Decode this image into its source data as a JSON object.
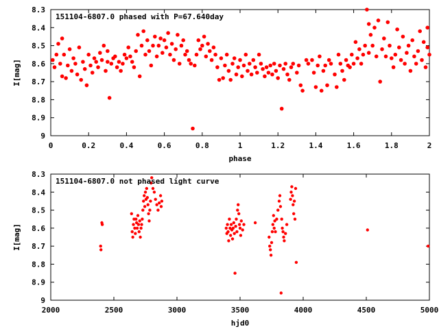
{
  "chart_data": [
    {
      "type": "scatter",
      "title": "151104-6807.0 phased with P=67.640day",
      "xlabel": "phase",
      "ylabel": "I[mag]",
      "xlim": [
        0,
        2
      ],
      "ylim": [
        9,
        8.3
      ],
      "y_inverted": true,
      "grid": false,
      "xticks": [
        "0",
        "0.2",
        "0.4",
        "0.6",
        "0.8",
        "1",
        "1.2",
        "1.4",
        "1.6",
        "1.8",
        "2"
      ],
      "yticks": [
        "8.3",
        "8.4",
        "8.5",
        "8.6",
        "8.7",
        "8.8",
        "8.9",
        "9"
      ],
      "color": "#ff0000",
      "points": [
        [
          0.01,
          8.58
        ],
        [
          0.02,
          8.62
        ],
        [
          0.03,
          8.55
        ],
        [
          0.04,
          8.49
        ],
        [
          0.05,
          8.6
        ],
        [
          0.06,
          8.67
        ],
        [
          0.06,
          8.46
        ],
        [
          0.07,
          8.55
        ],
        [
          0.08,
          8.68
        ],
        [
          0.09,
          8.61
        ],
        [
          0.1,
          8.52
        ],
        [
          0.11,
          8.64
        ],
        [
          0.12,
          8.57
        ],
        [
          0.13,
          8.6
        ],
        [
          0.14,
          8.66
        ],
        [
          0.15,
          8.51
        ],
        [
          0.16,
          8.69
        ],
        [
          0.17,
          8.59
        ],
        [
          0.18,
          8.63
        ],
        [
          0.19,
          8.72
        ],
        [
          0.2,
          8.55
        ],
        [
          0.21,
          8.61
        ],
        [
          0.22,
          8.65
        ],
        [
          0.23,
          8.57
        ],
        [
          0.24,
          8.59
        ],
        [
          0.25,
          8.62
        ],
        [
          0.26,
          8.54
        ],
        [
          0.27,
          8.58
        ],
        [
          0.28,
          8.5
        ],
        [
          0.29,
          8.64
        ],
        [
          0.3,
          8.59
        ],
        [
          0.3,
          8.53
        ],
        [
          0.31,
          8.79
        ],
        [
          0.32,
          8.6
        ],
        [
          0.33,
          8.57
        ],
        [
          0.34,
          8.56
        ],
        [
          0.35,
          8.62
        ],
        [
          0.36,
          8.59
        ],
        [
          0.37,
          8.64
        ],
        [
          0.38,
          8.6
        ],
        [
          0.39,
          8.55
        ],
        [
          0.4,
          8.57
        ],
        [
          0.41,
          8.51
        ],
        [
          0.42,
          8.56
        ],
        [
          0.43,
          8.59
        ],
        [
          0.44,
          8.62
        ],
        [
          0.45,
          8.53
        ],
        [
          0.46,
          8.44
        ],
        [
          0.47,
          8.67
        ],
        [
          0.48,
          8.5
        ],
        [
          0.49,
          8.42
        ],
        [
          0.5,
          8.55
        ],
        [
          0.51,
          8.47
        ],
        [
          0.52,
          8.53
        ],
        [
          0.53,
          8.61
        ],
        [
          0.54,
          8.5
        ],
        [
          0.55,
          8.45
        ],
        [
          0.56,
          8.56
        ],
        [
          0.57,
          8.5
        ],
        [
          0.58,
          8.46
        ],
        [
          0.59,
          8.54
        ],
        [
          0.6,
          8.47
        ],
        [
          0.61,
          8.51
        ],
        [
          0.62,
          8.43
        ],
        [
          0.63,
          8.55
        ],
        [
          0.64,
          8.49
        ],
        [
          0.65,
          8.58
        ],
        [
          0.66,
          8.52
        ],
        [
          0.67,
          8.44
        ],
        [
          0.68,
          8.6
        ],
        [
          0.69,
          8.5
        ],
        [
          0.7,
          8.47
        ],
        [
          0.71,
          8.55
        ],
        [
          0.72,
          8.53
        ],
        [
          0.73,
          8.58
        ],
        [
          0.74,
          8.6
        ],
        [
          0.75,
          8.96
        ],
        [
          0.76,
          8.61
        ],
        [
          0.77,
          8.55
        ],
        [
          0.78,
          8.47
        ],
        [
          0.79,
          8.52
        ],
        [
          0.8,
          8.5
        ],
        [
          0.81,
          8.45
        ],
        [
          0.82,
          8.56
        ],
        [
          0.83,
          8.49
        ],
        [
          0.84,
          8.53
        ],
        [
          0.85,
          8.58
        ],
        [
          0.86,
          8.51
        ],
        [
          0.87,
          8.55
        ],
        [
          0.88,
          8.62
        ],
        [
          0.89,
          8.69
        ],
        [
          0.9,
          8.57
        ],
        [
          0.91,
          8.68
        ],
        [
          0.92,
          8.61
        ],
        [
          0.93,
          8.55
        ],
        [
          0.94,
          8.64
        ],
        [
          0.95,
          8.69
        ],
        [
          0.96,
          8.6
        ],
        [
          0.97,
          8.57
        ],
        [
          0.98,
          8.66
        ],
        [
          0.99,
          8.62
        ],
        [
          1.0,
          8.58
        ],
        [
          1.01,
          8.67
        ],
        [
          1.02,
          8.61
        ],
        [
          1.03,
          8.55
        ],
        [
          1.04,
          8.64
        ],
        [
          1.05,
          8.6
        ],
        [
          1.06,
          8.66
        ],
        [
          1.07,
          8.58
        ],
        [
          1.08,
          8.62
        ],
        [
          1.09,
          8.65
        ],
        [
          1.1,
          8.55
        ],
        [
          1.11,
          8.6
        ],
        [
          1.12,
          8.63
        ],
        [
          1.13,
          8.67
        ],
        [
          1.14,
          8.62
        ],
        [
          1.15,
          8.65
        ],
        [
          1.16,
          8.61
        ],
        [
          1.17,
          8.66
        ],
        [
          1.18,
          8.6
        ],
        [
          1.19,
          8.64
        ],
        [
          1.2,
          8.68
        ],
        [
          1.21,
          8.61
        ],
        [
          1.22,
          8.85
        ],
        [
          1.23,
          8.63
        ],
        [
          1.24,
          8.6
        ],
        [
          1.25,
          8.66
        ],
        [
          1.26,
          8.69
        ],
        [
          1.27,
          8.62
        ],
        [
          1.28,
          8.6
        ],
        [
          1.3,
          8.65
        ],
        [
          1.31,
          8.61
        ],
        [
          1.32,
          8.72
        ],
        [
          1.33,
          8.75
        ],
        [
          1.35,
          8.58
        ],
        [
          1.36,
          8.6
        ],
        [
          1.38,
          8.58
        ],
        [
          1.39,
          8.65
        ],
        [
          1.4,
          8.73
        ],
        [
          1.41,
          8.61
        ],
        [
          1.42,
          8.56
        ],
        [
          1.43,
          8.75
        ],
        [
          1.44,
          8.64
        ],
        [
          1.45,
          8.61
        ],
        [
          1.46,
          8.72
        ],
        [
          1.47,
          8.58
        ],
        [
          1.48,
          8.6
        ],
        [
          1.5,
          8.66
        ],
        [
          1.51,
          8.73
        ],
        [
          1.52,
          8.55
        ],
        [
          1.53,
          8.6
        ],
        [
          1.54,
          8.64
        ],
        [
          1.55,
          8.69
        ],
        [
          1.56,
          8.58
        ],
        [
          1.57,
          8.61
        ],
        [
          1.58,
          8.62
        ],
        [
          1.59,
          8.55
        ],
        [
          1.6,
          8.6
        ],
        [
          1.61,
          8.48
        ],
        [
          1.62,
          8.57
        ],
        [
          1.63,
          8.52
        ],
        [
          1.64,
          8.6
        ],
        [
          1.65,
          8.55
        ],
        [
          1.66,
          8.5
        ],
        [
          1.67,
          8.3
        ],
        [
          1.68,
          8.38
        ],
        [
          1.68,
          8.54
        ],
        [
          1.69,
          8.44
        ],
        [
          1.7,
          8.5
        ],
        [
          1.71,
          8.4
        ],
        [
          1.72,
          8.56
        ],
        [
          1.73,
          8.36
        ],
        [
          1.74,
          8.7
        ],
        [
          1.75,
          8.52
        ],
        [
          1.76,
          8.46
        ],
        [
          1.77,
          8.56
        ],
        [
          1.78,
          8.37
        ],
        [
          1.79,
          8.5
        ],
        [
          1.8,
          8.57
        ],
        [
          1.81,
          8.62
        ],
        [
          1.82,
          8.55
        ],
        [
          1.83,
          8.41
        ],
        [
          1.84,
          8.51
        ],
        [
          1.85,
          8.58
        ],
        [
          1.86,
          8.45
        ],
        [
          1.87,
          8.6
        ],
        [
          1.88,
          8.54
        ],
        [
          1.89,
          8.5
        ],
        [
          1.9,
          8.64
        ],
        [
          1.91,
          8.47
        ],
        [
          1.92,
          8.56
        ],
        [
          1.93,
          8.6
        ],
        [
          1.94,
          8.53
        ],
        [
          1.95,
          8.42
        ],
        [
          1.96,
          8.58
        ],
        [
          1.97,
          8.48
        ],
        [
          1.98,
          8.62
        ],
        [
          1.99,
          8.51
        ],
        [
          1.99,
          8.4
        ],
        [
          2.0,
          8.55
        ]
      ]
    },
    {
      "type": "scatter",
      "title": "151104-6807.0 not phased light curve",
      "xlabel": "hjd0",
      "ylabel": "I[mag]",
      "xlim": [
        2000,
        5000
      ],
      "ylim": [
        9,
        8.3
      ],
      "y_inverted": true,
      "grid": false,
      "xticks": [
        "2000",
        "2500",
        "3000",
        "3500",
        "4000",
        "4500",
        "5000"
      ],
      "yticks": [
        "8.3",
        "8.4",
        "8.5",
        "8.6",
        "8.7",
        "8.8",
        "8.9",
        "9"
      ],
      "color": "#ff0000",
      "points": [
        [
          2395,
          8.7
        ],
        [
          2398,
          8.72
        ],
        [
          2405,
          8.57
        ],
        [
          2408,
          8.58
        ],
        [
          2640,
          8.52
        ],
        [
          2645,
          8.62
        ],
        [
          2650,
          8.65
        ],
        [
          2655,
          8.58
        ],
        [
          2660,
          8.55
        ],
        [
          2665,
          8.6
        ],
        [
          2670,
          8.63
        ],
        [
          2675,
          8.55
        ],
        [
          2680,
          8.57
        ],
        [
          2685,
          8.6
        ],
        [
          2690,
          8.53
        ],
        [
          2695,
          8.58
        ],
        [
          2700,
          8.62
        ],
        [
          2705,
          8.56
        ],
        [
          2710,
          8.65
        ],
        [
          2715,
          8.6
        ],
        [
          2720,
          8.58
        ],
        [
          2725,
          8.55
        ],
        [
          2730,
          8.5
        ],
        [
          2735,
          8.45
        ],
        [
          2740,
          8.42
        ],
        [
          2745,
          8.48
        ],
        [
          2750,
          8.4
        ],
        [
          2755,
          8.44
        ],
        [
          2760,
          8.38
        ],
        [
          2765,
          8.43
        ],
        [
          2770,
          8.47
        ],
        [
          2775,
          8.52
        ],
        [
          2780,
          8.56
        ],
        [
          2785,
          8.5
        ],
        [
          2790,
          8.45
        ],
        [
          2795,
          8.35
        ],
        [
          2800,
          8.32
        ],
        [
          2810,
          8.38
        ],
        [
          2820,
          8.4
        ],
        [
          2830,
          8.44
        ],
        [
          2840,
          8.47
        ],
        [
          2850,
          8.5
        ],
        [
          2860,
          8.46
        ],
        [
          2870,
          8.42
        ],
        [
          2875,
          8.48
        ],
        [
          2880,
          8.45
        ],
        [
          3390,
          8.6
        ],
        [
          3395,
          8.63
        ],
        [
          3400,
          8.58
        ],
        [
          3405,
          8.62
        ],
        [
          3410,
          8.67
        ],
        [
          3415,
          8.55
        ],
        [
          3420,
          8.6
        ],
        [
          3425,
          8.64
        ],
        [
          3430,
          8.58
        ],
        [
          3435,
          8.61
        ],
        [
          3440,
          8.66
        ],
        [
          3445,
          8.6
        ],
        [
          3450,
          8.57
        ],
        [
          3455,
          8.63
        ],
        [
          3460,
          8.85
        ],
        [
          3465,
          8.59
        ],
        [
          3470,
          8.55
        ],
        [
          3475,
          8.62
        ],
        [
          3480,
          8.5
        ],
        [
          3485,
          8.47
        ],
        [
          3490,
          8.52
        ],
        [
          3495,
          8.58
        ],
        [
          3500,
          8.6
        ],
        [
          3505,
          8.64
        ],
        [
          3510,
          8.56
        ],
        [
          3520,
          8.61
        ],
        [
          3530,
          8.58
        ],
        [
          3620,
          8.57
        ],
        [
          3730,
          8.65
        ],
        [
          3735,
          8.7
        ],
        [
          3740,
          8.72
        ],
        [
          3745,
          8.75
        ],
        [
          3750,
          8.68
        ],
        [
          3755,
          8.62
        ],
        [
          3760,
          8.58
        ],
        [
          3765,
          8.53
        ],
        [
          3770,
          8.6
        ],
        [
          3775,
          8.56
        ],
        [
          3780,
          8.62
        ],
        [
          3790,
          8.55
        ],
        [
          3800,
          8.5
        ],
        [
          3810,
          8.45
        ],
        [
          3815,
          8.42
        ],
        [
          3820,
          8.48
        ],
        [
          3825,
          8.96
        ],
        [
          3830,
          8.55
        ],
        [
          3835,
          8.6
        ],
        [
          3840,
          8.62
        ],
        [
          3845,
          8.65
        ],
        [
          3850,
          8.67
        ],
        [
          3860,
          8.63
        ],
        [
          3870,
          8.58
        ],
        [
          3900,
          8.44
        ],
        [
          3905,
          8.4
        ],
        [
          3910,
          8.37
        ],
        [
          3915,
          8.42
        ],
        [
          3920,
          8.47
        ],
        [
          3925,
          8.52
        ],
        [
          3930,
          8.45
        ],
        [
          3935,
          8.55
        ],
        [
          3940,
          8.38
        ],
        [
          3945,
          8.79
        ],
        [
          4510,
          8.61
        ],
        [
          4990,
          8.7
        ]
      ]
    }
  ]
}
